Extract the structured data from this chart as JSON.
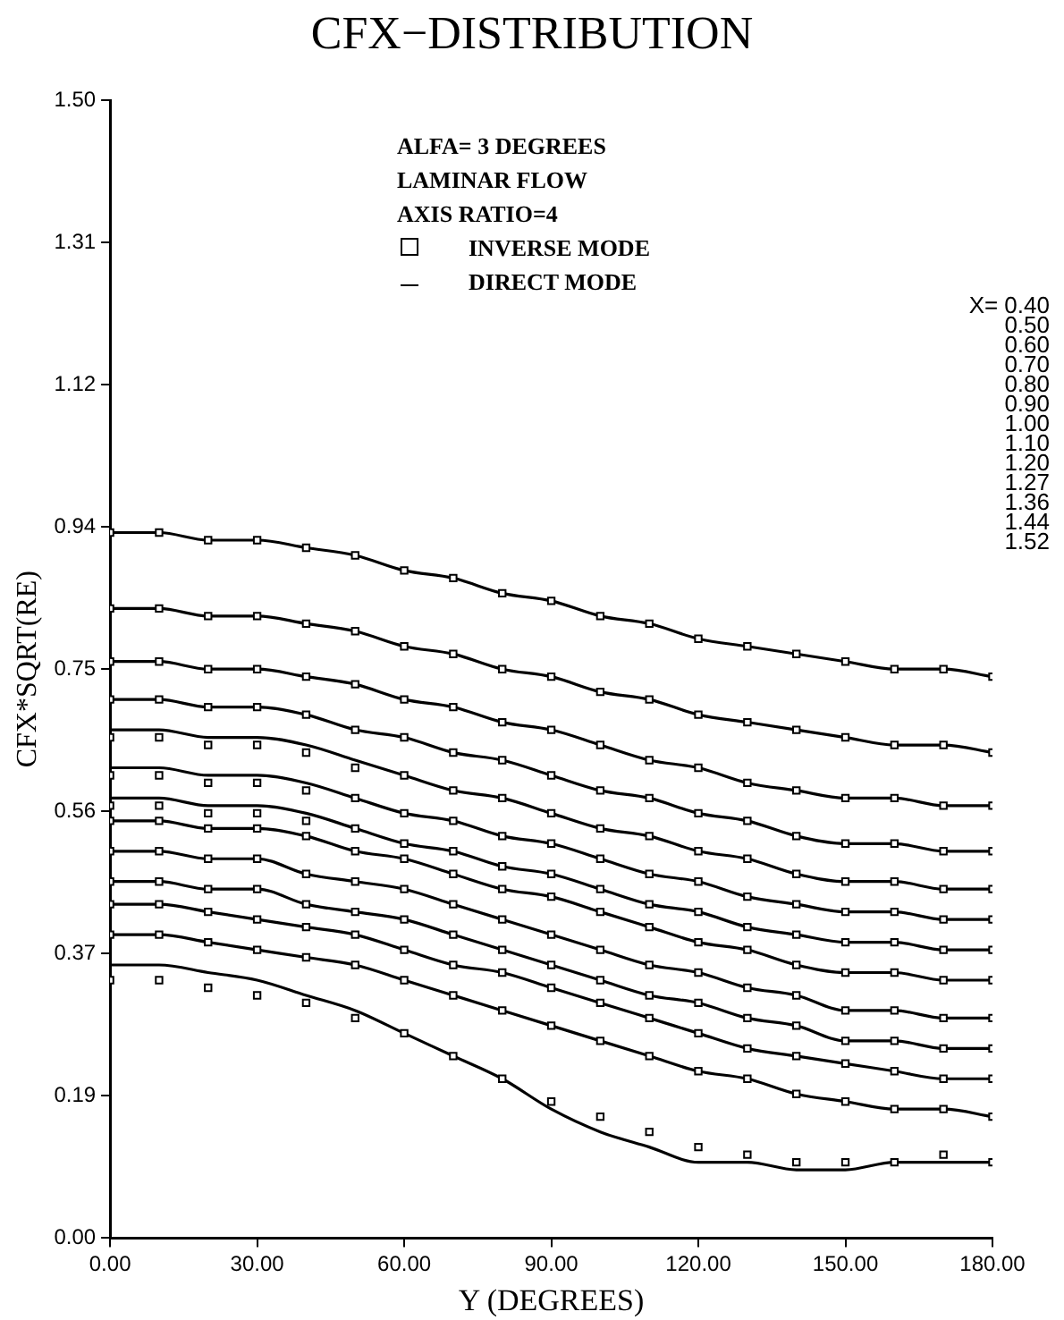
{
  "chart_data": {
    "type": "line",
    "title": "CFX−DISTRIBUTION",
    "xlabel": "Y (DEGREES)",
    "ylabel": "CFX*SQRT(RE)",
    "annotations": [
      "ALFA= 3 DEGREES",
      "LAMINAR FLOW",
      "AXIS RATIO=4",
      "X= 0.40",
      "0.50",
      "0.60",
      "0.70",
      "0.80",
      "0.90",
      "1.00",
      "1.10",
      "1.20",
      "1.27",
      "1.36",
      "1.44",
      "1.52"
    ],
    "x": [
      0,
      10,
      20,
      30,
      40,
      50,
      60,
      70,
      80,
      90,
      100,
      110,
      120,
      130,
      140,
      150,
      160,
      170,
      180
    ],
    "xlim": [
      0,
      180
    ],
    "xticks": [
      {
        "value": 0,
        "label": "0.00"
      },
      {
        "value": 30,
        "label": "30.00"
      },
      {
        "value": 60,
        "label": "60.00"
      },
      {
        "value": 90,
        "label": "90.00"
      },
      {
        "value": 120,
        "label": "120.00"
      },
      {
        "value": 150,
        "label": "150.00"
      },
      {
        "value": 180,
        "label": "180.00"
      }
    ],
    "ylim": [
      0,
      1.5
    ],
    "yticks": [
      {
        "value": 0,
        "label": "0.00"
      },
      {
        "value": 0.1875,
        "label": "0.19"
      },
      {
        "value": 0.375,
        "label": "0.37"
      },
      {
        "value": 0.5625,
        "label": "0.56"
      },
      {
        "value": 0.75,
        "label": "0.75"
      },
      {
        "value": 0.9375,
        "label": "0.94"
      },
      {
        "value": 1.125,
        "label": "1.12"
      },
      {
        "value": 1.3125,
        "label": "1.31"
      },
      {
        "value": 1.5,
        "label": "1.50"
      }
    ],
    "grid": false,
    "legend": "top",
    "series": [
      {
        "type": "scatter",
        "marker": "square",
        "name": "INVERSE MODE",
        "color": "#000000",
        "values": [
          0.93,
          0.93,
          0.92,
          0.92,
          0.91,
          0.9,
          0.88,
          0.87,
          0.85,
          0.84,
          0.82,
          0.81,
          0.79,
          0.78,
          0.77,
          0.76,
          0.75,
          0.75,
          0.74
        ]
      },
      {
        "type": "scatter",
        "marker": "square",
        "color": "#000000",
        "values": [
          0.83,
          0.83,
          0.82,
          0.82,
          0.81,
          0.8,
          0.78,
          0.77,
          0.75,
          0.74,
          0.72,
          0.71,
          0.69,
          0.68,
          0.67,
          0.66,
          0.65,
          0.65,
          0.64
        ]
      },
      {
        "type": "scatter",
        "marker": "square",
        "color": "#000000",
        "values": [
          0.76,
          0.76,
          0.75,
          0.75,
          0.74,
          0.73,
          0.71,
          0.7,
          0.68,
          0.67,
          0.65,
          0.63,
          0.62,
          0.6,
          0.59,
          0.58,
          0.58,
          0.57,
          0.57
        ]
      },
      {
        "type": "scatter",
        "marker": "square",
        "color": "#000000",
        "values": [
          0.71,
          0.71,
          0.7,
          0.7,
          0.69,
          0.67,
          0.66,
          0.64,
          0.63,
          0.61,
          0.59,
          0.58,
          0.56,
          0.55,
          0.53,
          0.52,
          0.52,
          0.51,
          0.51
        ]
      },
      {
        "type": "scatter",
        "marker": "square",
        "color": "#000000",
        "values": [
          0.66,
          0.66,
          0.65,
          0.65,
          0.64,
          0.62,
          0.61,
          0.59,
          0.58,
          0.56,
          0.54,
          0.53,
          0.51,
          0.5,
          0.48,
          0.47,
          0.47,
          0.46,
          0.46
        ]
      },
      {
        "type": "scatter",
        "marker": "square",
        "color": "#000000",
        "values": [
          0.61,
          0.61,
          0.6,
          0.6,
          0.59,
          0.58,
          0.56,
          0.55,
          0.53,
          0.52,
          0.5,
          0.48,
          0.47,
          0.45,
          0.44,
          0.43,
          0.43,
          0.42,
          0.42
        ]
      },
      {
        "type": "scatter",
        "marker": "square",
        "color": "#000000",
        "values": [
          0.57,
          0.57,
          0.56,
          0.56,
          0.55,
          0.54,
          0.52,
          0.51,
          0.49,
          0.48,
          0.46,
          0.44,
          0.43,
          0.41,
          0.4,
          0.39,
          0.39,
          0.38,
          0.38
        ]
      },
      {
        "type": "scatter",
        "marker": "square",
        "color": "#000000",
        "values": [
          0.55,
          0.55,
          0.54,
          0.54,
          0.53,
          0.51,
          0.5,
          0.48,
          0.46,
          0.45,
          0.43,
          0.41,
          0.39,
          0.38,
          0.36,
          0.35,
          0.35,
          0.34,
          0.34
        ]
      },
      {
        "type": "scatter",
        "marker": "square",
        "color": "#000000",
        "values": [
          0.51,
          0.51,
          0.5,
          0.5,
          0.48,
          0.47,
          0.46,
          0.44,
          0.42,
          0.4,
          0.38,
          0.36,
          0.35,
          0.33,
          0.32,
          0.3,
          0.3,
          0.29,
          0.29
        ]
      },
      {
        "type": "scatter",
        "marker": "square",
        "color": "#000000",
        "values": [
          0.47,
          0.47,
          0.46,
          0.46,
          0.44,
          0.43,
          0.42,
          0.4,
          0.38,
          0.36,
          0.34,
          0.32,
          0.31,
          0.29,
          0.28,
          0.26,
          0.26,
          0.25,
          0.25
        ]
      },
      {
        "type": "scatter",
        "marker": "square",
        "color": "#000000",
        "values": [
          0.44,
          0.44,
          0.43,
          0.42,
          0.41,
          0.4,
          0.38,
          0.36,
          0.35,
          0.33,
          0.31,
          0.29,
          0.27,
          0.25,
          0.24,
          0.23,
          0.22,
          0.21,
          0.21
        ]
      },
      {
        "type": "scatter",
        "marker": "square",
        "color": "#000000",
        "values": [
          0.4,
          0.4,
          0.39,
          0.38,
          0.37,
          0.36,
          0.34,
          0.32,
          0.3,
          0.28,
          0.26,
          0.24,
          0.22,
          0.21,
          0.19,
          0.18,
          0.17,
          0.17,
          0.16
        ]
      },
      {
        "type": "scatter",
        "marker": "square",
        "color": "#000000",
        "values": [
          0.34,
          0.34,
          0.33,
          0.32,
          0.31,
          0.29,
          0.27,
          0.24,
          0.21,
          0.18,
          0.16,
          0.14,
          0.12,
          0.11,
          0.1,
          0.1,
          0.1,
          0.11,
          0.1
        ]
      },
      {
        "type": "line",
        "marker": "none",
        "line_style": "solid",
        "name": "DIRECT MODE",
        "color": "#000000",
        "values": [
          0.93,
          0.93,
          0.92,
          0.92,
          0.91,
          0.9,
          0.88,
          0.87,
          0.85,
          0.84,
          0.82,
          0.81,
          0.79,
          0.78,
          0.77,
          0.76,
          0.75,
          0.75,
          0.74
        ]
      },
      {
        "type": "line",
        "marker": "none",
        "line_style": "solid",
        "color": "#000000",
        "values": [
          0.83,
          0.83,
          0.82,
          0.82,
          0.81,
          0.8,
          0.78,
          0.77,
          0.75,
          0.74,
          0.72,
          0.71,
          0.69,
          0.68,
          0.67,
          0.66,
          0.65,
          0.65,
          0.64
        ]
      },
      {
        "type": "line",
        "marker": "none",
        "line_style": "solid",
        "color": "#000000",
        "values": [
          0.76,
          0.76,
          0.75,
          0.75,
          0.74,
          0.73,
          0.71,
          0.7,
          0.68,
          0.67,
          0.65,
          0.63,
          0.62,
          0.6,
          0.59,
          0.58,
          0.58,
          0.57,
          0.57
        ]
      },
      {
        "type": "line",
        "marker": "none",
        "line_style": "solid",
        "color": "#000000",
        "values": [
          0.71,
          0.71,
          0.7,
          0.7,
          0.69,
          0.67,
          0.66,
          0.64,
          0.63,
          0.61,
          0.59,
          0.58,
          0.56,
          0.55,
          0.53,
          0.52,
          0.52,
          0.51,
          0.51
        ]
      },
      {
        "type": "line",
        "marker": "none",
        "line_style": "solid",
        "color": "#000000",
        "values": [
          0.67,
          0.67,
          0.66,
          0.66,
          0.65,
          0.63,
          0.61,
          0.59,
          0.58,
          0.56,
          0.54,
          0.53,
          0.51,
          0.5,
          0.48,
          0.47,
          0.47,
          0.46,
          0.46
        ]
      },
      {
        "type": "line",
        "marker": "none",
        "line_style": "solid",
        "color": "#000000",
        "values": [
          0.62,
          0.62,
          0.61,
          0.61,
          0.6,
          0.58,
          0.56,
          0.55,
          0.53,
          0.52,
          0.5,
          0.48,
          0.47,
          0.45,
          0.44,
          0.43,
          0.43,
          0.42,
          0.42
        ]
      },
      {
        "type": "line",
        "marker": "none",
        "line_style": "solid",
        "color": "#000000",
        "values": [
          0.58,
          0.58,
          0.57,
          0.57,
          0.56,
          0.54,
          0.52,
          0.51,
          0.49,
          0.48,
          0.46,
          0.44,
          0.43,
          0.41,
          0.4,
          0.39,
          0.39,
          0.38,
          0.38
        ]
      },
      {
        "type": "line",
        "marker": "none",
        "line_style": "solid",
        "color": "#000000",
        "values": [
          0.55,
          0.55,
          0.54,
          0.54,
          0.53,
          0.51,
          0.5,
          0.48,
          0.46,
          0.45,
          0.43,
          0.41,
          0.39,
          0.38,
          0.36,
          0.35,
          0.35,
          0.34,
          0.34
        ]
      },
      {
        "type": "line",
        "marker": "none",
        "line_style": "solid",
        "color": "#000000",
        "values": [
          0.51,
          0.51,
          0.5,
          0.5,
          0.48,
          0.47,
          0.46,
          0.44,
          0.42,
          0.4,
          0.38,
          0.36,
          0.35,
          0.33,
          0.32,
          0.3,
          0.3,
          0.29,
          0.29
        ]
      },
      {
        "type": "line",
        "marker": "none",
        "line_style": "solid",
        "color": "#000000",
        "values": [
          0.47,
          0.47,
          0.46,
          0.46,
          0.44,
          0.43,
          0.42,
          0.4,
          0.38,
          0.36,
          0.34,
          0.32,
          0.31,
          0.29,
          0.28,
          0.26,
          0.26,
          0.25,
          0.25
        ]
      },
      {
        "type": "line",
        "marker": "none",
        "line_style": "solid",
        "color": "#000000",
        "values": [
          0.44,
          0.44,
          0.43,
          0.42,
          0.41,
          0.4,
          0.38,
          0.36,
          0.35,
          0.33,
          0.31,
          0.29,
          0.27,
          0.25,
          0.24,
          0.23,
          0.22,
          0.21,
          0.21
        ]
      },
      {
        "type": "line",
        "marker": "none",
        "line_style": "solid",
        "color": "#000000",
        "values": [
          0.4,
          0.4,
          0.39,
          0.38,
          0.37,
          0.36,
          0.34,
          0.32,
          0.3,
          0.28,
          0.26,
          0.24,
          0.22,
          0.21,
          0.19,
          0.18,
          0.17,
          0.17,
          0.16
        ]
      },
      {
        "type": "line",
        "marker": "none",
        "line_style": "solid",
        "color": "#000000",
        "values": [
          0.36,
          0.36,
          0.35,
          0.34,
          0.32,
          0.3,
          0.27,
          0.24,
          0.21,
          0.17,
          0.14,
          0.12,
          0.1,
          0.1,
          0.09,
          0.09,
          0.1,
          0.1,
          0.1
        ]
      }
    ]
  }
}
